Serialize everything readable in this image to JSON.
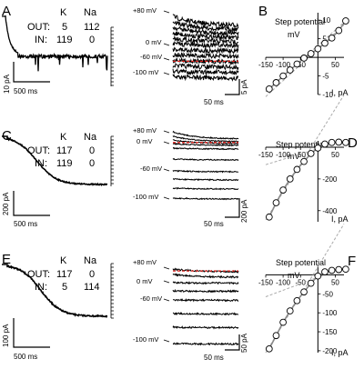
{
  "panels": {
    "A": {
      "letter": "A",
      "headers": [
        "K",
        "Na"
      ],
      "rows": [
        {
          "label": "OUT:",
          "k": "5",
          "na": "112"
        },
        {
          "label": "IN:",
          "k": "119",
          "na": "0"
        }
      ],
      "ybar": "10 pA",
      "xbar": "500 ms"
    },
    "C": {
      "letter": "C",
      "headers": [
        "K",
        "Na"
      ],
      "rows": [
        {
          "label": "OUT:",
          "k": "117",
          "na": "0"
        },
        {
          "label": "IN:",
          "k": "119",
          "na": "0"
        }
      ],
      "ybar": "200 pA",
      "xbar": "500 ms"
    },
    "E": {
      "letter": "E",
      "headers": [
        "K",
        "Na"
      ],
      "rows": [
        {
          "label": "OUT:",
          "k": "117",
          "na": "0"
        },
        {
          "label": "IN:",
          "k": "5",
          "na": "114"
        }
      ],
      "ybar": "100 pA",
      "xbar": "500 ms"
    }
  },
  "steps": {
    "A": {
      "labels": [
        "+80 mV",
        "0 mV",
        "-60 mV",
        "-100 mV"
      ],
      "ybar": "5 pA",
      "xbar": "50 ms"
    },
    "C": {
      "labels": [
        "+80 mV",
        "0 mV",
        "-60 mV",
        "-100 mV"
      ],
      "ybar": "200 pA",
      "xbar": "50 ms"
    },
    "E": {
      "labels": [
        "+80 mV",
        "0 mV",
        "-60 mV",
        "-100 mV"
      ],
      "ybar": "50 pA",
      "xbar": "50 ms"
    }
  },
  "iv": {
    "B": {
      "letter": "B",
      "title": "Step potential",
      "xunit": "mV",
      "yunit": "I, pA"
    },
    "D": {
      "letter": "D",
      "title": "Step potential",
      "xunit": "mV",
      "yunit": "I, pA"
    },
    "F": {
      "letter": "F",
      "title": "Step potential",
      "xunit": "mV",
      "yunit": "I, pA"
    }
  },
  "chart_data": [
    {
      "type": "scatter",
      "panel": "B",
      "title": "Step potential",
      "xlabel": "mV",
      "ylabel": "I, pA",
      "xlim": [
        -150,
        75
      ],
      "ylim": [
        -10,
        12
      ],
      "xticks": [
        -150,
        -100,
        -50,
        50
      ],
      "yticks": [
        -10,
        -5,
        5,
        10
      ],
      "series": [
        {
          "x": [
            -140,
            -120,
            -100,
            -80,
            -60,
            -40,
            -20,
            0,
            20,
            40,
            60,
            80
          ],
          "y": [
            -8.5,
            -6.8,
            -5.0,
            -3.4,
            -1.8,
            -0.2,
            1.0,
            2.3,
            3.8,
            5.2,
            7.2,
            9.8
          ]
        }
      ]
    },
    {
      "type": "scatter",
      "panel": "D",
      "title": "Step potential",
      "xlabel": "mV",
      "ylabel": "I, pA",
      "xlim": [
        -150,
        75
      ],
      "ylim": [
        -470,
        40
      ],
      "xticks": [
        -150,
        -100,
        -50,
        50
      ],
      "yticks": [
        -400,
        -200
      ],
      "series": [
        {
          "x": [
            -140,
            -120,
            -100,
            -80,
            -60,
            -40,
            -20,
            0,
            20,
            40,
            60,
            80
          ],
          "y": [
            -440,
            -350,
            -270,
            -200,
            -140,
            -90,
            -40,
            -5,
            20,
            30,
            32,
            30
          ]
        }
      ]
    },
    {
      "type": "scatter",
      "panel": "F",
      "title": "Step potential",
      "xlabel": "mV",
      "ylabel": "I, pA",
      "xlim": [
        -150,
        75
      ],
      "ylim": [
        -205,
        25
      ],
      "xticks": [
        -150,
        -100,
        -50,
        50
      ],
      "yticks": [
        -200,
        -150,
        -100,
        -50
      ],
      "series": [
        {
          "x": [
            -140,
            -120,
            -100,
            -80,
            -60,
            -40,
            -20,
            0,
            20,
            40,
            60,
            80
          ],
          "y": [
            -195,
            -160,
            -125,
            -95,
            -68,
            -45,
            -22,
            -3,
            8,
            12,
            14,
            15
          ]
        }
      ]
    }
  ]
}
